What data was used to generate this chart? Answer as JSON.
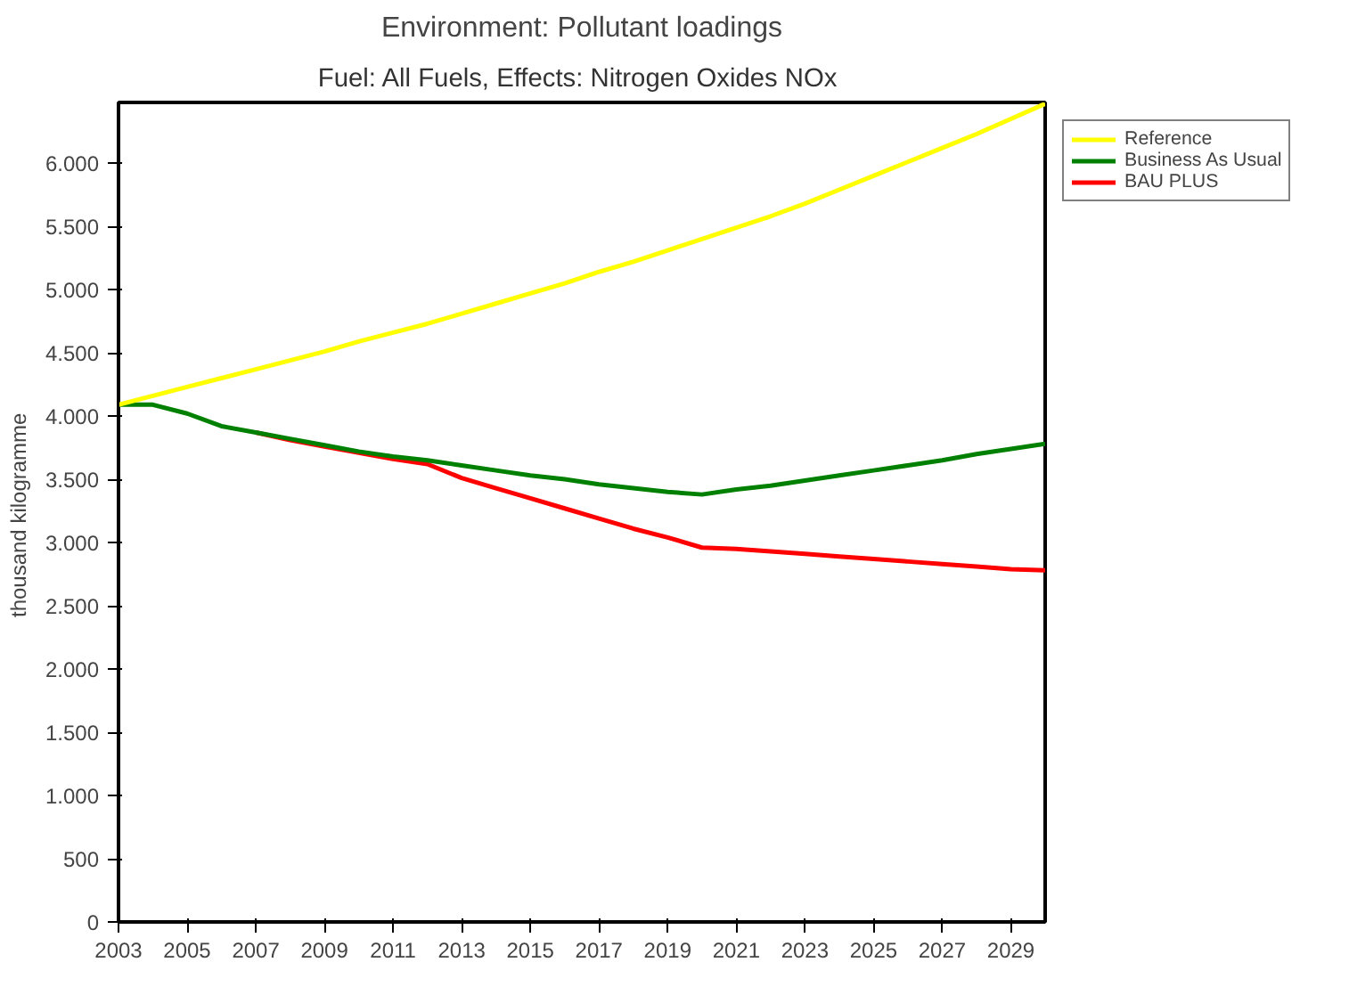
{
  "chart_data": {
    "type": "line",
    "title": "Environment: Pollutant loadings",
    "subtitle": "Fuel: All Fuels,  Effects: Nitrogen Oxides NOx",
    "ylabel": "thousand  kilogramme",
    "x": [
      2003,
      2004,
      2005,
      2006,
      2007,
      2008,
      2009,
      2010,
      2011,
      2012,
      2013,
      2014,
      2015,
      2016,
      2017,
      2018,
      2019,
      2020,
      2021,
      2022,
      2023,
      2024,
      2025,
      2026,
      2027,
      2028,
      2029,
      2030
    ],
    "series": [
      {
        "name": "Reference",
        "color": "#ffff00",
        "values": [
          4090,
          4160,
          4230,
          4300,
          4370,
          4440,
          4510,
          4590,
          4660,
          4730,
          4810,
          4890,
          4970,
          5050,
          5140,
          5220,
          5310,
          5400,
          5490,
          5580,
          5680,
          5790,
          5900,
          6010,
          6120,
          6230,
          6350,
          6470
        ]
      },
      {
        "name": "Business As Usual",
        "color": "#008000",
        "values": [
          4090,
          4090,
          4020,
          3920,
          3870,
          3820,
          3770,
          3720,
          3680,
          3650,
          3610,
          3570,
          3530,
          3500,
          3460,
          3430,
          3400,
          3380,
          3420,
          3450,
          3490,
          3530,
          3570,
          3610,
          3650,
          3700,
          3740,
          3780
        ]
      },
      {
        "name": "BAU PLUS",
        "color": "#ff0000",
        "values": [
          null,
          null,
          null,
          null,
          3870,
          3810,
          3760,
          3710,
          3660,
          3620,
          3510,
          3430,
          3350,
          3270,
          3190,
          3110,
          3040,
          2960,
          2950,
          2930,
          2910,
          2890,
          2870,
          2850,
          2830,
          2810,
          2790,
          2780
        ]
      }
    ],
    "xlim": [
      2003,
      2030
    ],
    "ylim": [
      0,
      6480
    ],
    "xticks": [
      2003,
      2005,
      2007,
      2009,
      2011,
      2013,
      2015,
      2017,
      2019,
      2021,
      2023,
      2025,
      2027,
      2029
    ],
    "yticks": [
      0,
      500,
      {
        "value": 1000,
        "label": "1.000"
      },
      {
        "value": 1500,
        "label": "1.500"
      },
      {
        "value": 2000,
        "label": "2.000"
      },
      {
        "value": 2500,
        "label": "2.500"
      },
      {
        "value": 3000,
        "label": "3.000"
      },
      {
        "value": 3500,
        "label": "3.500"
      },
      {
        "value": 4000,
        "label": "4.000"
      },
      {
        "value": 4500,
        "label": "4.500"
      },
      {
        "value": 5000,
        "label": "5.000"
      },
      {
        "value": 5500,
        "label": "5.500"
      },
      {
        "value": 6000,
        "label": "6.000"
      }
    ],
    "grid": false,
    "legend": "top right",
    "marker": "none",
    "line_style": "solid"
  }
}
